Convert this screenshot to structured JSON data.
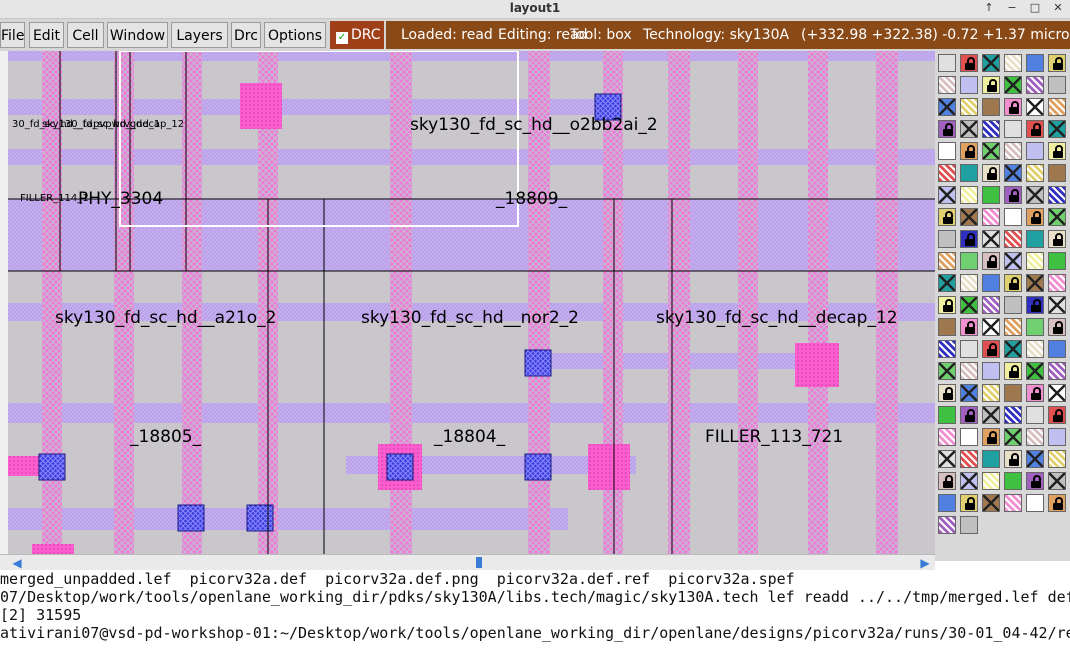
{
  "window": {
    "title": "layout1",
    "controls": [
      "↑",
      "−",
      "□",
      "✕"
    ]
  },
  "menubar": {
    "items": [
      "File",
      "Edit",
      "Cell",
      "Window",
      "Layers",
      "Drc",
      "Options"
    ],
    "drc_toggle": {
      "label": "DRC",
      "checked": true
    }
  },
  "status": {
    "loaded": "Loaded: read",
    "editing": "Editing: read",
    "tool": "Tool: box",
    "technology": "Technology: sky130A",
    "coordinates": "(+332.98 +322.38) -0.72 +1.37 microns"
  },
  "layout": {
    "cell_labels": [
      "30_fd_sc_hd__tapvpwrvgnd_1",
      "sky130_fd_sc_hd__decap_12",
      "sky130_fd_sc_hd__o2bb2ai_2",
      "FILLER_114_1",
      "PHY_3304",
      "_18809_",
      "sky130_fd_sc_hd__a21o_2",
      "sky130_fd_sc_hd__nor2_2",
      "sky130_fd_sc_hd__decap_12",
      "_18805_",
      "_18804_",
      "FILLER_113_721"
    ]
  },
  "colors": {
    "canvas_bg": "#c9c6cc",
    "poly": "#ff6ad5",
    "metal1": "#b9a0e8",
    "via": "#3c3ce0",
    "status_bg": "#8a4a18",
    "drc_bg": "#a04018"
  },
  "terminal": {
    "lines": [
      "merged_unpadded.lef  picorv32a.def  picorv32a.def.png  picorv32a.def.ref  picorv32a.spef",
      "07/Desktop/work/tools/openlane_working_dir/pdks/sky130A/libs.tech/magic/sky130A.tech lef readd ../../tmp/merged.lef def",
      "[2] 31595",
      "ativirani07@vsd-pd-workshop-01:~/Desktop/work/tools/openlane_working_dir/openlane/designs/picorv32a/runs/30-01_04-42/re"
    ],
    "top_partial": "ativirani07@vsd-pd-workshop-01:~/Desktop/work/tools/openlane_working_dir/openlane/designs/picorv32a/runs/30-01_04-42/re"
  }
}
